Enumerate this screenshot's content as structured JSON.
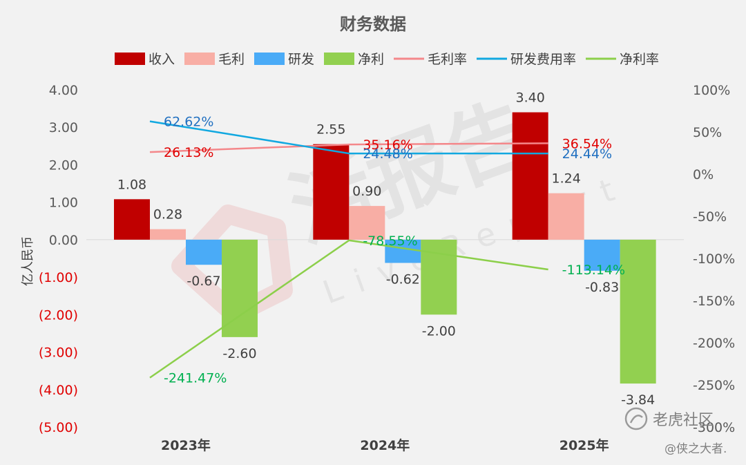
{
  "chart_data": {
    "type": "bar",
    "title": "财务数据",
    "ylabel": "亿人民币",
    "categories": [
      "2023年",
      "2024年",
      "2025年"
    ],
    "ylim": [
      -5,
      4
    ],
    "y_ticks": [
      "4.00",
      "3.00",
      "2.00",
      "1.00",
      "0.00",
      "(1.00)",
      "(2.00)",
      "(3.00)",
      "(4.00)",
      "(5.00)"
    ],
    "y2lim": [
      -300,
      100
    ],
    "y2_ticks": [
      "100%",
      "50%",
      "0%",
      "-50%",
      "-100%",
      "-150%",
      "-200%",
      "-250%",
      "-300%"
    ],
    "legend_position": "top",
    "series": [
      {
        "name": "收入",
        "kind": "bar",
        "color": "#c00000",
        "values": [
          1.08,
          2.55,
          3.4
        ],
        "labels": [
          "1.08",
          "2.55",
          "3.40"
        ]
      },
      {
        "name": "毛利",
        "kind": "bar",
        "color": "#f8aea5",
        "values": [
          0.28,
          0.9,
          1.24
        ],
        "labels": [
          "0.28",
          "0.90",
          "1.24"
        ]
      },
      {
        "name": "研发",
        "kind": "bar",
        "color": "#4aabf7",
        "values": [
          -0.67,
          -0.62,
          -0.83
        ],
        "labels": [
          "-0.67",
          "-0.62",
          "-0.83"
        ]
      },
      {
        "name": "净利",
        "kind": "bar",
        "color": "#92d050",
        "values": [
          -2.6,
          -2.0,
          -3.84
        ],
        "labels": [
          "-2.60",
          "-2.00",
          "-3.84"
        ]
      },
      {
        "name": "毛利率",
        "kind": "line",
        "axis": "right",
        "color": "#f4878a",
        "label_color": "#e00000",
        "values": [
          26.13,
          35.16,
          36.54
        ],
        "labels": [
          "26.13%",
          "35.16%",
          "36.54%"
        ]
      },
      {
        "name": "研发费用率",
        "kind": "line",
        "axis": "right",
        "color": "#11a8e0",
        "label_color": "#1f6fc0",
        "values": [
          62.62,
          24.48,
          24.44
        ],
        "labels": [
          "62.62%",
          "24.48%",
          "24.44%"
        ]
      },
      {
        "name": "净利率",
        "kind": "line",
        "axis": "right",
        "color": "#8ccf4a",
        "label_color": "#00b050",
        "values": [
          -241.47,
          -78.55,
          -113.14
        ],
        "labels": [
          "-241.47%",
          "-78.55%",
          "-113.14%"
        ]
      }
    ],
    "negative_tick_color": "#e00000",
    "grid": false
  },
  "watermark": {
    "brand_text": "老虎社区",
    "author_text": "@侠之大者.",
    "report_cn": "活报告",
    "report_en": "LiveReport"
  }
}
